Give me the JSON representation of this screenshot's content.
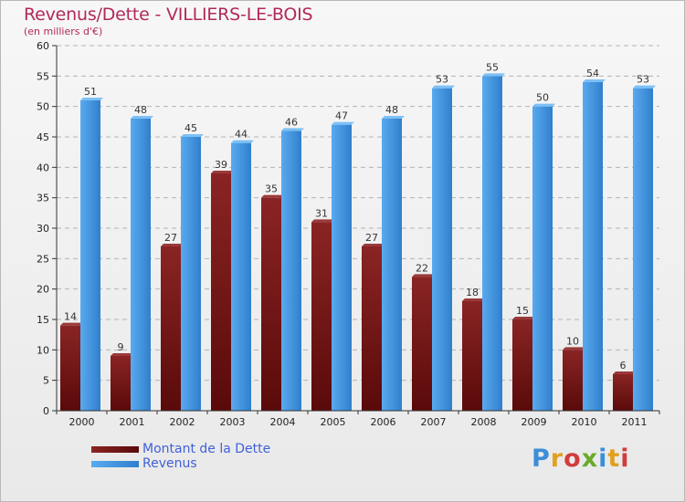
{
  "header": {
    "title": "Revenus/Dette - VILLIERS-LE-BOIS",
    "subtitle": "(en milliers d'€)"
  },
  "colors": {
    "title": "#b2285a",
    "dette": "#7a1a1a",
    "revenus": "#3d8fda",
    "legend_text": "#4060d8"
  },
  "chart_data": {
    "type": "bar",
    "title": "Revenus/Dette - VILLIERS-LE-BOIS",
    "ylabel": "(en milliers d'€)",
    "xlabel": "",
    "ylim": [
      0,
      60
    ],
    "yticks": [
      0,
      5,
      10,
      15,
      20,
      25,
      30,
      35,
      40,
      45,
      50,
      55,
      60
    ],
    "grid": "horizontal dashed",
    "legend_position": "bottom-left",
    "categories": [
      "2000",
      "2001",
      "2002",
      "2003",
      "2004",
      "2005",
      "2006",
      "2007",
      "2008",
      "2009",
      "2010",
      "2011"
    ],
    "series": [
      {
        "name": "Montant de la Dette",
        "values": [
          14,
          9,
          27,
          39,
          35,
          31,
          27,
          22,
          18,
          15,
          10,
          6
        ]
      },
      {
        "name": "Revenus",
        "values": [
          51,
          48,
          45,
          44,
          46,
          47,
          48,
          53,
          55,
          50,
          54,
          53
        ]
      }
    ]
  },
  "legend": {
    "items": [
      {
        "label": "Montant de la Dette"
      },
      {
        "label": "Revenus"
      }
    ]
  },
  "logo": {
    "text": "Proxiti",
    "letters": [
      {
        "char": "P",
        "color": "#3b8fd8"
      },
      {
        "char": "r",
        "color": "#e0a020"
      },
      {
        "char": "o",
        "color": "#d23c3c"
      },
      {
        "char": "x",
        "color": "#6aaa2a"
      },
      {
        "char": "i",
        "color": "#3b8fd8"
      },
      {
        "char": "t",
        "color": "#e0a020"
      },
      {
        "char": "i",
        "color": "#d23c3c"
      }
    ]
  }
}
